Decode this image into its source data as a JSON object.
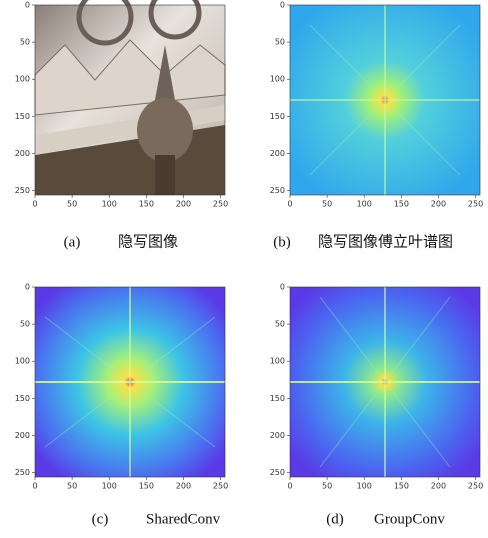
{
  "figure": {
    "panels": [
      {
        "label": "(a)",
        "caption": "隐写图像",
        "xlim": [
          0,
          256
        ],
        "ylim": [
          256,
          0
        ],
        "xticks": [
          0,
          50,
          100,
          150,
          200,
          250
        ],
        "yticks": [
          0,
          50,
          100,
          150,
          200,
          250
        ]
      },
      {
        "label": "(b)",
        "caption": "隐写图像傅立叶谱图",
        "xlim": [
          0,
          256
        ],
        "ylim": [
          256,
          0
        ],
        "xticks": [
          0,
          50,
          100,
          150,
          200,
          250
        ],
        "yticks": [
          0,
          50,
          100,
          150,
          200,
          250
        ]
      },
      {
        "label": "(c)",
        "caption": "SharedConv",
        "xlim": [
          0,
          256
        ],
        "ylim": [
          256,
          0
        ],
        "xticks": [
          0,
          50,
          100,
          150,
          200,
          250
        ],
        "yticks": [
          0,
          50,
          100,
          150,
          200,
          250
        ]
      },
      {
        "label": "(d)",
        "caption": "GroupConv",
        "xlim": [
          0,
          256
        ],
        "ylim": [
          256,
          0
        ],
        "xticks": [
          0,
          50,
          100,
          150,
          200,
          250
        ],
        "yticks": [
          0,
          50,
          100,
          150,
          200,
          250
        ]
      }
    ]
  }
}
